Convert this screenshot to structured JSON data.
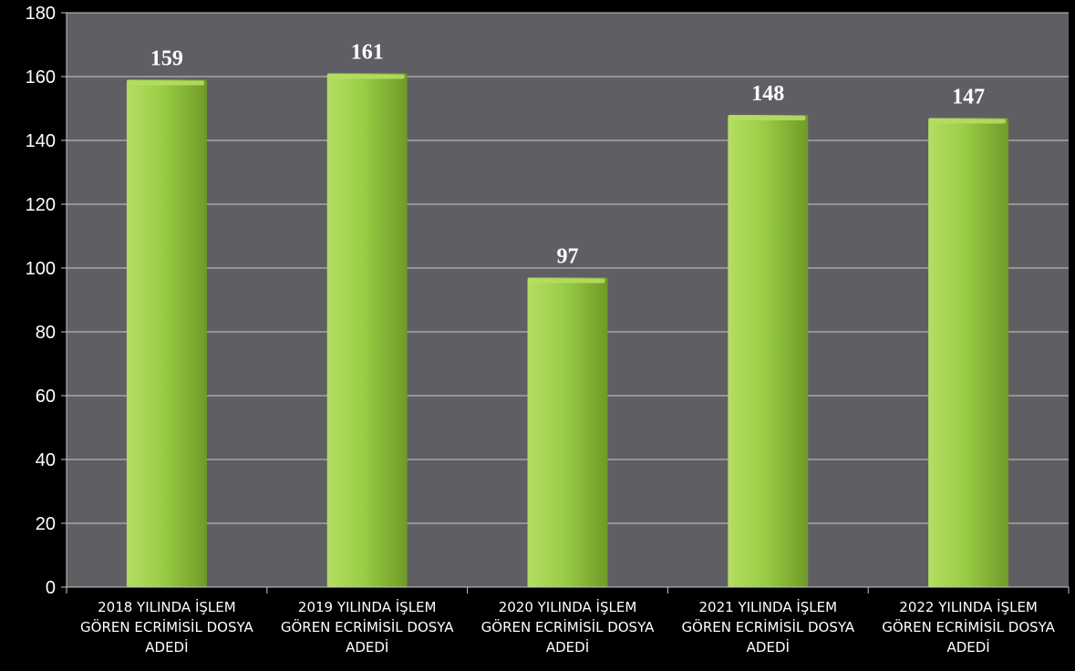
{
  "chart_data": {
    "type": "bar",
    "categories": [
      [
        "2018 YILINDA İŞLEM",
        "GÖREN ECRİMİSİL DOSYA",
        "ADEDİ"
      ],
      [
        "2019 YILINDA İŞLEM",
        "GÖREN ECRİMİSİL DOSYA",
        "ADEDİ"
      ],
      [
        "2020 YILINDA İŞLEM",
        "GÖREN ECRİMİSİL DOSYA",
        "ADEDİ"
      ],
      [
        "2021 YILINDA İŞLEM",
        "GÖREN ECRİMİSİL DOSYA",
        "ADEDİ"
      ],
      [
        "2022 YILINDA İŞLEM",
        "GÖREN ECRİMİSİL DOSYA",
        "ADEDİ"
      ]
    ],
    "values": [
      159,
      161,
      97,
      148,
      147
    ],
    "data_labels": [
      "159",
      "161",
      "97",
      "148",
      "147"
    ],
    "y_ticks": [
      "0",
      "20",
      "40",
      "60",
      "80",
      "100",
      "120",
      "140",
      "160",
      "180"
    ],
    "ylim": [
      0,
      180
    ],
    "grid": true,
    "legend": "none",
    "title": "",
    "xlabel": "",
    "ylabel": "",
    "colors": {
      "page_background": "#000000",
      "plot_background": "#5f5f63",
      "gridline": "#c8c8c8",
      "bar_light": "#b5dd63",
      "bar_mid": "#9acd45",
      "bar_dark": "#6f9a27",
      "text": "#ffffff"
    }
  }
}
